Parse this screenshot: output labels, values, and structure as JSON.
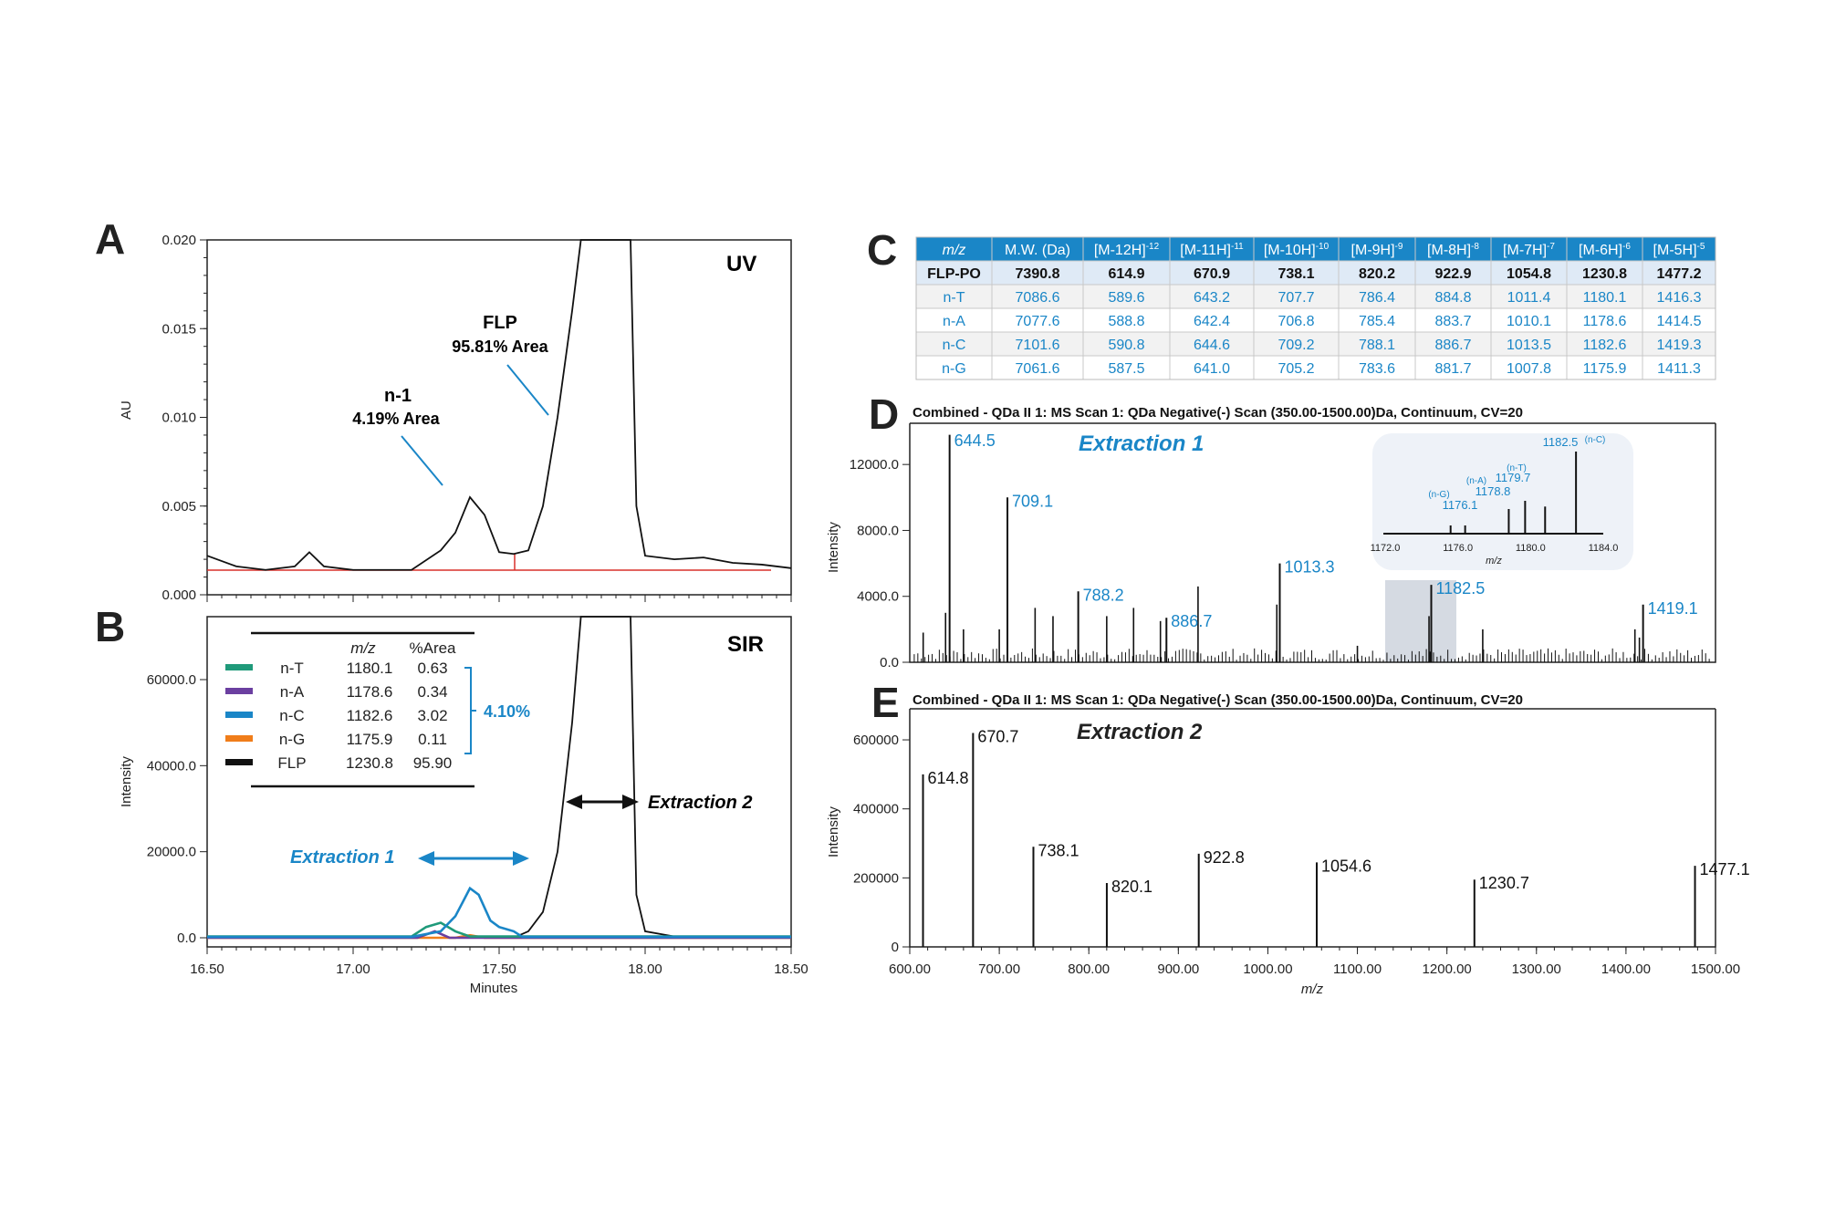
{
  "panels": {
    "a": "A",
    "b": "B",
    "c": "C",
    "d": "D",
    "e": "E"
  },
  "colors": {
    "blue": "#1a86c7",
    "nT": "#1f9a7a",
    "nA": "#6b3fa0",
    "nC": "#1a86c7",
    "nG": "#f07d1a",
    "FLP": "#111111",
    "baseline": "#d9302a"
  },
  "chart_data": [
    {
      "id": "A",
      "type": "line",
      "title": "UV",
      "ylabel": "AU",
      "xlim": [
        16.5,
        18.5
      ],
      "ylim": [
        0,
        0.02
      ],
      "yticks": [
        "0.000",
        "0.005",
        "0.010",
        "0.015",
        "0.020"
      ],
      "x": [
        16.5,
        16.6,
        16.7,
        16.8,
        16.85,
        16.9,
        17.0,
        17.2,
        17.3,
        17.35,
        17.4,
        17.45,
        17.5,
        17.55,
        17.6,
        17.65,
        17.7,
        17.75,
        17.78,
        17.95,
        17.97,
        18.0,
        18.1,
        18.2,
        18.3,
        18.4,
        18.5
      ],
      "y": [
        0.0022,
        0.0016,
        0.0014,
        0.0016,
        0.0024,
        0.0016,
        0.0014,
        0.0014,
        0.0025,
        0.0035,
        0.0055,
        0.0045,
        0.0024,
        0.0023,
        0.0025,
        0.005,
        0.01,
        0.016,
        0.021,
        0.021,
        0.005,
        0.0022,
        0.002,
        0.0021,
        0.0018,
        0.0017,
        0.0015
      ],
      "annotations": [
        {
          "label": "FLP",
          "sub": "95.81% Area"
        },
        {
          "label": "n-1",
          "sub": "4.19% Area"
        }
      ]
    },
    {
      "id": "B",
      "type": "line",
      "title": "SIR",
      "xlabel": "Minutes",
      "ylabel": "Intensity",
      "xlim": [
        16.5,
        18.5
      ],
      "ylim": [
        0,
        72000
      ],
      "xticks": [
        "16.50",
        "17.00",
        "17.50",
        "18.00",
        "18.50"
      ],
      "yticks": [
        "0.0",
        "20000.0",
        "40000.0",
        "60000.0"
      ],
      "series": [
        {
          "name": "n-T",
          "mz": "1180.1",
          "area": "0.63",
          "x": [
            16.5,
            17.2,
            17.25,
            17.3,
            17.35,
            17.4,
            18.5
          ],
          "y": [
            300,
            300,
            2500,
            3500,
            1500,
            300,
            300
          ]
        },
        {
          "name": "n-A",
          "mz": "1178.6",
          "area": "0.34",
          "x": [
            16.5,
            17.22,
            17.28,
            17.33,
            18.5
          ],
          "y": [
            0,
            0,
            1500,
            0,
            0
          ]
        },
        {
          "name": "n-C",
          "mz": "1182.6",
          "area": "3.02",
          "x": [
            16.5,
            17.2,
            17.3,
            17.35,
            17.4,
            17.43,
            17.47,
            17.5,
            17.55,
            17.58,
            18.5
          ],
          "y": [
            200,
            200,
            1500,
            5000,
            11500,
            10000,
            4000,
            2500,
            1500,
            200,
            200
          ]
        },
        {
          "name": "n-G",
          "mz": "1175.9",
          "area": "0.11",
          "x": [
            16.5,
            17.35,
            17.4,
            17.45,
            18.5
          ],
          "y": [
            0,
            0,
            600,
            0,
            0
          ]
        },
        {
          "name": "FLP",
          "mz": "1230.8",
          "area": "95.90",
          "x": [
            16.5,
            17.55,
            17.6,
            17.65,
            17.7,
            17.75,
            17.78,
            17.95,
            17.97,
            18.0,
            18.1,
            18.5
          ],
          "y": [
            0,
            0,
            1500,
            6000,
            20000,
            50000,
            76000,
            76000,
            10000,
            1500,
            300,
            0
          ]
        }
      ],
      "legend_header": {
        "mz": "m/z",
        "area": "%Area"
      },
      "bracket_total": "4.10%",
      "extraction1": "Extraction 1",
      "extraction2": "Extraction 2"
    },
    {
      "id": "C",
      "type": "table",
      "columns": [
        "m/z",
        "M.W. (Da)",
        "[M-12H]",
        "[M-11H]",
        "[M-10H]",
        "[M-9H]",
        "[M-8H]",
        "[M-7H]",
        "[M-6H]",
        "[M-5H]"
      ],
      "charges": [
        "",
        "",
        "-12",
        "-11",
        "-10",
        "-9",
        "-8",
        "-7",
        "-6",
        "-5"
      ],
      "rows": [
        [
          "FLP-PO",
          "7390.8",
          "614.9",
          "670.9",
          "738.1",
          "820.2",
          "922.9",
          "1054.8",
          "1230.8",
          "1477.2"
        ],
        [
          "n-T",
          "7086.6",
          "589.6",
          "643.2",
          "707.7",
          "786.4",
          "884.8",
          "1011.4",
          "1180.1",
          "1416.3"
        ],
        [
          "n-A",
          "7077.6",
          "588.8",
          "642.4",
          "706.8",
          "785.4",
          "883.7",
          "1010.1",
          "1178.6",
          "1414.5"
        ],
        [
          "n-C",
          "7101.6",
          "590.8",
          "644.6",
          "709.2",
          "788.1",
          "886.7",
          "1013.5",
          "1182.6",
          "1419.3"
        ],
        [
          "n-G",
          "7061.6",
          "587.5",
          "641.0",
          "705.2",
          "783.6",
          "881.7",
          "1007.8",
          "1175.9",
          "1411.3"
        ]
      ]
    },
    {
      "id": "D",
      "type": "bar",
      "title": "Combined - QDa II 1: MS Scan 1: QDa Negative(-) Scan (350.00-1500.00)Da, Continuum, CV=20",
      "subtitle": "Extraction 1",
      "ylabel": "Intensity",
      "xlim": [
        600,
        1500
      ],
      "ylim": [
        0,
        14500
      ],
      "yticks": [
        "0.0",
        "4000.0",
        "8000.0",
        "12000.0"
      ],
      "labeled_peaks": [
        [
          644.5,
          13800
        ],
        [
          709.1,
          10000
        ],
        [
          788.2,
          4300
        ],
        [
          886.7,
          2700
        ],
        [
          1013.3,
          6000
        ],
        [
          1182.5,
          4700
        ],
        [
          1419.1,
          3500
        ]
      ],
      "other_peaks": [
        [
          615,
          1800
        ],
        [
          640,
          3000
        ],
        [
          660,
          2000
        ],
        [
          700,
          2000
        ],
        [
          740,
          3300
        ],
        [
          760,
          2800
        ],
        [
          820,
          2800
        ],
        [
          850,
          3300
        ],
        [
          880,
          2500
        ],
        [
          922,
          4600
        ],
        [
          1010,
          3500
        ],
        [
          1100,
          1000
        ],
        [
          1180,
          2800
        ],
        [
          1240,
          2000
        ],
        [
          1410,
          2000
        ],
        [
          1415,
          1500
        ]
      ],
      "inset": {
        "xlim": [
          1172,
          1184
        ],
        "xticks": [
          "1172.0",
          "1176.0",
          "1180.0",
          "1184.0"
        ],
        "xlabel": "m/z",
        "peaks": [
          [
            1175.6,
            0.1
          ],
          [
            1176.4,
            0.1
          ],
          [
            1178.8,
            0.3
          ],
          [
            1179.7,
            0.4
          ],
          [
            1180.8,
            0.33
          ],
          [
            1182.5,
            1.0
          ]
        ],
        "labels": [
          {
            "name": "(n-G)",
            "mz": "1176.1"
          },
          {
            "name": "(n-A)",
            "mz": "1178.8"
          },
          {
            "name": "(n-T)",
            "mz": "1179.7"
          },
          {
            "name": "(n-C)",
            "mz": "1182.5"
          }
        ]
      }
    },
    {
      "id": "E",
      "type": "bar",
      "title": "Combined - QDa II 1: MS Scan 1: QDa Negative(-) Scan (350.00-1500.00)Da, Continuum, CV=20",
      "subtitle": "Extraction 2",
      "xlabel": "m/z",
      "ylabel": "Intensity",
      "xlim": [
        600,
        1500
      ],
      "ylim": [
        0,
        690000
      ],
      "xticks": [
        "600.00",
        "700.00",
        "800.00",
        "900.00",
        "1000.00",
        "1100.00",
        "1200.00",
        "1300.00",
        "1400.00",
        "1500.00"
      ],
      "yticks": [
        "0",
        "200000",
        "400000",
        "600000"
      ],
      "labeled_peaks": [
        [
          614.8,
          500000
        ],
        [
          670.7,
          620000
        ],
        [
          738.1,
          290000
        ],
        [
          820.1,
          185000
        ],
        [
          922.8,
          270000
        ],
        [
          1054.6,
          245000
        ],
        [
          1230.7,
          195000
        ],
        [
          1477.1,
          235000
        ]
      ]
    }
  ]
}
